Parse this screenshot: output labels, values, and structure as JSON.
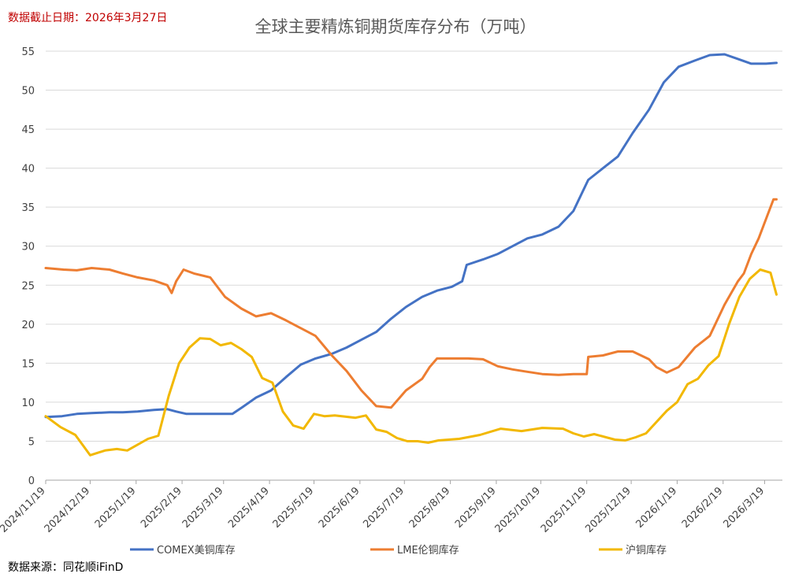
{
  "header": {
    "date_note": "数据截止日期：2026年3月27日"
  },
  "footer": {
    "source": "数据来源：同花顺iFinD"
  },
  "chart_data": {
    "type": "line",
    "title": "全球主要精炼铜期货库存分布（万吨）",
    "xlabel": "",
    "ylabel": "",
    "ylim": [
      0,
      55
    ],
    "yticks": [
      0,
      5,
      10,
      15,
      20,
      25,
      30,
      35,
      40,
      45,
      50,
      55
    ],
    "xlim": [
      "2024-11-19",
      "2026-03-31"
    ],
    "xticks": [
      "2024/11/19",
      "2024/12/19",
      "2025/1/19",
      "2025/2/19",
      "2025/3/19",
      "2025/4/19",
      "2025/5/19",
      "2025/6/19",
      "2025/7/19",
      "2025/8/19",
      "2025/9/19",
      "2025/10/19",
      "2025/11/19",
      "2025/12/19",
      "2026/1/19",
      "2026/2/19",
      "2026/3/19"
    ],
    "grid": true,
    "legend_position": "bottom",
    "series": [
      {
        "name": "COMEX美铜库存",
        "color": "#4472c4",
        "points": [
          [
            "2024-11-19",
            8.1
          ],
          [
            "2024-11-30",
            8.2
          ],
          [
            "2024-12-10",
            8.5
          ],
          [
            "2024-12-20",
            8.6
          ],
          [
            "2025-01-01",
            8.7
          ],
          [
            "2025-01-10",
            8.7
          ],
          [
            "2025-01-20",
            8.8
          ],
          [
            "2025-01-31",
            9.0
          ],
          [
            "2025-02-09",
            9.1
          ],
          [
            "2025-02-15",
            8.8
          ],
          [
            "2025-02-22",
            8.5
          ],
          [
            "2025-03-10",
            8.5
          ],
          [
            "2025-03-25",
            8.5
          ],
          [
            "2025-04-01",
            9.4
          ],
          [
            "2025-04-10",
            10.6
          ],
          [
            "2025-04-20",
            11.5
          ],
          [
            "2025-04-30",
            13.2
          ],
          [
            "2025-05-10",
            14.8
          ],
          [
            "2025-05-20",
            15.6
          ],
          [
            "2025-05-31",
            16.2
          ],
          [
            "2025-06-10",
            17.0
          ],
          [
            "2025-06-20",
            18.0
          ],
          [
            "2025-06-30",
            19.0
          ],
          [
            "2025-07-10",
            20.7
          ],
          [
            "2025-07-20",
            22.2
          ],
          [
            "2025-07-31",
            23.5
          ],
          [
            "2025-08-10",
            24.3
          ],
          [
            "2025-08-20",
            24.8
          ],
          [
            "2025-08-27",
            25.5
          ],
          [
            "2025-08-30",
            27.6
          ],
          [
            "2025-09-10",
            28.3
          ],
          [
            "2025-09-20",
            29.0
          ],
          [
            "2025-09-30",
            30.0
          ],
          [
            "2025-10-10",
            31.0
          ],
          [
            "2025-10-20",
            31.5
          ],
          [
            "2025-10-31",
            32.5
          ],
          [
            "2025-11-10",
            34.5
          ],
          [
            "2025-11-20",
            38.5
          ],
          [
            "2025-11-30",
            40.0
          ],
          [
            "2025-12-10",
            41.5
          ],
          [
            "2025-12-20",
            44.5
          ],
          [
            "2025-12-31",
            47.5
          ],
          [
            "2026-01-10",
            51.0
          ],
          [
            "2026-01-20",
            53.0
          ],
          [
            "2026-01-31",
            53.8
          ],
          [
            "2026-02-10",
            54.5
          ],
          [
            "2026-02-20",
            54.6
          ],
          [
            "2026-03-01",
            54.0
          ],
          [
            "2026-03-10",
            53.4
          ],
          [
            "2026-03-20",
            53.4
          ],
          [
            "2026-03-27",
            53.5
          ]
        ]
      },
      {
        "name": "LME伦铜库存",
        "color": "#ed7d31",
        "points": [
          [
            "2024-11-19",
            27.2
          ],
          [
            "2024-12-01",
            27.0
          ],
          [
            "2024-12-10",
            26.9
          ],
          [
            "2024-12-20",
            27.2
          ],
          [
            "2025-01-01",
            27.0
          ],
          [
            "2025-01-10",
            26.5
          ],
          [
            "2025-01-20",
            26.0
          ],
          [
            "2025-01-31",
            25.6
          ],
          [
            "2025-02-09",
            25.0
          ],
          [
            "2025-02-12",
            24.0
          ],
          [
            "2025-02-15",
            25.5
          ],
          [
            "2025-02-20",
            27.0
          ],
          [
            "2025-02-27",
            26.5
          ],
          [
            "2025-03-10",
            26.0
          ],
          [
            "2025-03-20",
            23.5
          ],
          [
            "2025-03-31",
            22.0
          ],
          [
            "2025-04-10",
            21.0
          ],
          [
            "2025-04-20",
            21.4
          ],
          [
            "2025-04-30",
            20.5
          ],
          [
            "2025-05-10",
            19.5
          ],
          [
            "2025-05-20",
            18.5
          ],
          [
            "2025-05-31",
            16.0
          ],
          [
            "2025-06-10",
            14.0
          ],
          [
            "2025-06-20",
            11.5
          ],
          [
            "2025-06-30",
            9.5
          ],
          [
            "2025-07-10",
            9.3
          ],
          [
            "2025-07-20",
            11.5
          ],
          [
            "2025-07-31",
            13.0
          ],
          [
            "2025-08-05",
            14.5
          ],
          [
            "2025-08-10",
            15.6
          ],
          [
            "2025-08-20",
            15.6
          ],
          [
            "2025-08-31",
            15.6
          ],
          [
            "2025-09-10",
            15.5
          ],
          [
            "2025-09-20",
            14.6
          ],
          [
            "2025-09-30",
            14.2
          ],
          [
            "2025-10-10",
            13.9
          ],
          [
            "2025-10-20",
            13.6
          ],
          [
            "2025-10-31",
            13.5
          ],
          [
            "2025-11-10",
            13.6
          ],
          [
            "2025-11-19",
            13.6
          ],
          [
            "2025-11-20",
            15.8
          ],
          [
            "2025-11-30",
            16.0
          ],
          [
            "2025-12-10",
            16.5
          ],
          [
            "2025-12-20",
            16.5
          ],
          [
            "2025-12-31",
            15.5
          ],
          [
            "2026-01-05",
            14.5
          ],
          [
            "2026-01-12",
            13.8
          ],
          [
            "2026-01-20",
            14.5
          ],
          [
            "2026-01-31",
            17.0
          ],
          [
            "2026-02-10",
            18.5
          ],
          [
            "2026-02-20",
            22.5
          ],
          [
            "2026-03-01",
            25.5
          ],
          [
            "2026-03-05",
            26.5
          ],
          [
            "2026-03-10",
            29.0
          ],
          [
            "2026-03-15",
            31.0
          ],
          [
            "2026-03-20",
            33.5
          ],
          [
            "2026-03-25",
            36.0
          ],
          [
            "2026-03-27",
            36.0
          ]
        ]
      },
      {
        "name": "沪铜库存",
        "color": "#f2b800",
        "points": [
          [
            "2024-11-19",
            8.2
          ],
          [
            "2024-11-29",
            6.8
          ],
          [
            "2024-12-09",
            5.8
          ],
          [
            "2024-12-19",
            3.2
          ],
          [
            "2024-12-29",
            3.8
          ],
          [
            "2025-01-06",
            4.0
          ],
          [
            "2025-01-13",
            3.8
          ],
          [
            "2025-01-27",
            5.3
          ],
          [
            "2025-02-03",
            5.7
          ],
          [
            "2025-02-10",
            10.8
          ],
          [
            "2025-02-17",
            15.0
          ],
          [
            "2025-02-24",
            17.0
          ],
          [
            "2025-03-03",
            18.2
          ],
          [
            "2025-03-10",
            18.1
          ],
          [
            "2025-03-17",
            17.3
          ],
          [
            "2025-03-24",
            17.6
          ],
          [
            "2025-03-31",
            16.8
          ],
          [
            "2025-04-07",
            15.8
          ],
          [
            "2025-04-14",
            13.1
          ],
          [
            "2025-04-21",
            12.5
          ],
          [
            "2025-04-28",
            8.8
          ],
          [
            "2025-05-05",
            7.0
          ],
          [
            "2025-05-12",
            6.6
          ],
          [
            "2025-05-19",
            8.5
          ],
          [
            "2025-05-26",
            8.2
          ],
          [
            "2025-06-02",
            8.3
          ],
          [
            "2025-06-16",
            8.0
          ],
          [
            "2025-06-23",
            8.3
          ],
          [
            "2025-06-30",
            6.5
          ],
          [
            "2025-07-07",
            6.2
          ],
          [
            "2025-07-14",
            5.4
          ],
          [
            "2025-07-21",
            5.0
          ],
          [
            "2025-07-28",
            5.0
          ],
          [
            "2025-08-04",
            4.8
          ],
          [
            "2025-08-11",
            5.1
          ],
          [
            "2025-08-25",
            5.3
          ],
          [
            "2025-09-08",
            5.8
          ],
          [
            "2025-09-22",
            6.6
          ],
          [
            "2025-10-06",
            6.3
          ],
          [
            "2025-10-20",
            6.7
          ],
          [
            "2025-11-03",
            6.6
          ],
          [
            "2025-11-10",
            6.0
          ],
          [
            "2025-11-17",
            5.6
          ],
          [
            "2025-11-24",
            5.9
          ],
          [
            "2025-12-08",
            5.2
          ],
          [
            "2025-12-15",
            5.1
          ],
          [
            "2025-12-22",
            5.5
          ],
          [
            "2025-12-29",
            6.0
          ],
          [
            "2026-01-12",
            8.9
          ],
          [
            "2026-01-19",
            10.0
          ],
          [
            "2026-01-26",
            12.3
          ],
          [
            "2026-02-02",
            13.0
          ],
          [
            "2026-02-09",
            14.7
          ],
          [
            "2026-02-16",
            15.9
          ],
          [
            "2026-02-23",
            20.0
          ],
          [
            "2026-03-02",
            23.5
          ],
          [
            "2026-03-09",
            25.8
          ],
          [
            "2026-03-16",
            27.0
          ],
          [
            "2026-03-23",
            26.6
          ],
          [
            "2026-03-27",
            23.8
          ]
        ]
      }
    ]
  }
}
